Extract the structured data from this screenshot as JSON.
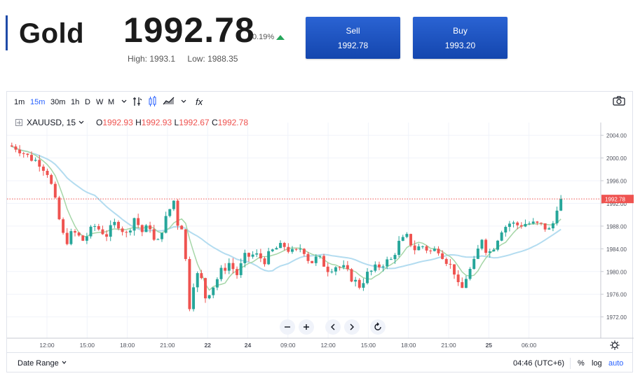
{
  "asset": {
    "name": "Gold",
    "price": "1992.78",
    "change": "0.19%",
    "high_label": "High: 1993.1",
    "low_label": "Low: 1988.35"
  },
  "buttons": {
    "sell_label": "Sell",
    "sell_price": "1992.78",
    "buy_label": "Buy",
    "buy_price": "1993.20"
  },
  "toolbar": {
    "intervals": [
      "1m",
      "15m",
      "30m",
      "1h",
      "D",
      "W",
      "M"
    ],
    "active_interval": "15m",
    "fx_label": "fx"
  },
  "legend": {
    "symbol": "XAUUSD, 15",
    "open": "1992.93",
    "high": "1992.93",
    "low": "1992.67",
    "close": "1992.78"
  },
  "bottom": {
    "date_range": "Date Range",
    "clock": "04:46 (UTC+6)",
    "pct": "%",
    "log": "log",
    "auto": "auto"
  },
  "colors": {
    "up": "#26a69a",
    "down": "#ef5350",
    "ma_fast": "#a5d6a7",
    "ma_slow": "#b3dcf0",
    "accent": "#2962ff",
    "button": "#1d50bd"
  },
  "chart_data": {
    "type": "candlestick",
    "symbol": "XAUUSD",
    "interval": "15",
    "last_price": 1992.78,
    "ylim": [
      1968.5,
      2006
    ],
    "y_ticks": [
      "2004.00",
      "2000.00",
      "1996.00",
      "1992.00",
      "1988.00",
      "1984.00",
      "1980.00",
      "1976.00",
      "1972.00"
    ],
    "x_ticks": [
      "12:00",
      "15:00",
      "18:00",
      "21:00",
      "22",
      "24",
      "09:00",
      "12:00",
      "15:00",
      "18:00",
      "21:00",
      "25",
      "06:00"
    ],
    "ohlc_path": [
      [
        0,
        2002.2
      ],
      [
        5,
        2001.8
      ],
      [
        10,
        2000.3
      ],
      [
        16,
        1999.2
      ],
      [
        20,
        1997.5
      ],
      [
        23,
        1994.0
      ],
      [
        25,
        1990.5
      ],
      [
        29,
        1985.0
      ],
      [
        33,
        1987.0
      ],
      [
        38,
        1985.5
      ],
      [
        44,
        1988.0
      ],
      [
        50,
        1986.5
      ],
      [
        55,
        1988.8
      ],
      [
        60,
        1986.5
      ],
      [
        64,
        1989.5
      ],
      [
        68,
        1987.0
      ],
      [
        72,
        1988.0
      ],
      [
        75,
        1984.0
      ],
      [
        78,
        1987.5
      ],
      [
        82,
        1991.0
      ],
      [
        84,
        1992.5
      ],
      [
        86,
        1988.5
      ],
      [
        88,
        1988.0
      ],
      [
        90,
        1982.0
      ],
      [
        92,
        1974.0
      ],
      [
        94,
        1978.0
      ],
      [
        97,
        1980.0
      ],
      [
        100,
        1975.5
      ],
      [
        104,
        1977.5
      ],
      [
        108,
        1980.0
      ],
      [
        112,
        1981.5
      ],
      [
        116,
        1979.5
      ],
      [
        120,
        1982.5
      ],
      [
        125,
        1983.0
      ],
      [
        130,
        1982.0
      ],
      [
        135,
        1984.0
      ],
      [
        140,
        1984.5
      ],
      [
        145,
        1983.0
      ],
      [
        149,
        1984.5
      ],
      [
        153,
        1981.5
      ],
      [
        157,
        1982.5
      ],
      [
        162,
        1980.5
      ],
      [
        166,
        1981.0
      ],
      [
        170,
        1980.5
      ],
      [
        175,
        1978.5
      ],
      [
        178,
        1977.5
      ],
      [
        182,
        1979.5
      ],
      [
        186,
        1980.5
      ],
      [
        190,
        1981.5
      ],
      [
        194,
        1982.0
      ],
      [
        198,
        1985.0
      ],
      [
        202,
        1986.0
      ],
      [
        206,
        1984.0
      ],
      [
        210,
        1984.5
      ],
      [
        214,
        1983.5
      ],
      [
        218,
        1984.0
      ],
      [
        222,
        1982.0
      ],
      [
        226,
        1980.0
      ],
      [
        229,
        1976.0
      ],
      [
        232,
        1979.0
      ],
      [
        236,
        1981.5
      ],
      [
        240,
        1986.0
      ],
      [
        243,
        1983.0
      ],
      [
        246,
        1984.5
      ],
      [
        250,
        1987.5
      ],
      [
        254,
        1988.5
      ],
      [
        258,
        1988.2
      ],
      [
        263,
        1988.5
      ],
      [
        267,
        1988.3
      ],
      [
        271,
        1988.0
      ],
      [
        275,
        1987.0
      ],
      [
        278,
        1991.5
      ],
      [
        280,
        1992.78
      ]
    ]
  }
}
